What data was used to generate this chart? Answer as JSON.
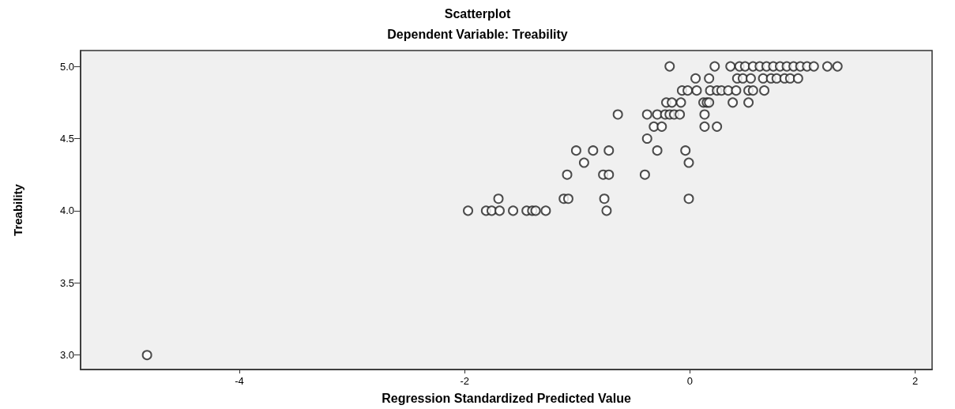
{
  "chart_data": {
    "type": "scatter",
    "title": "Scatterplot",
    "subtitle": "Dependent Variable: Treability",
    "xlabel": "Regression Standardized Predicted Value",
    "ylabel": "Treability",
    "series": [
      {
        "color": "#222222",
        "x": [
          -4.82,
          -1.97,
          -1.81,
          -1.76,
          -1.69,
          -1.57,
          -1.45,
          -1.4,
          -1.37,
          -1.28,
          -0.74,
          -1.7,
          -1.12,
          -1.08,
          -0.76,
          -0.01,
          -1.09,
          -0.77,
          -0.72,
          -0.4,
          -0.94,
          -0.01,
          -1.01,
          -0.86,
          -0.72,
          -0.29,
          -0.04,
          -0.38,
          -0.32,
          -0.25,
          0.13,
          0.24,
          -0.64,
          -0.38,
          -0.29,
          -0.22,
          -0.18,
          -0.14,
          -0.09,
          0.13,
          -0.21,
          -0.16,
          -0.08,
          0.12,
          0.15,
          0.17,
          0.38,
          0.52,
          -0.07,
          -0.02,
          0.06,
          0.18,
          0.24,
          0.28,
          0.34,
          0.41,
          0.52,
          0.56,
          0.66,
          0.05,
          0.17,
          0.42,
          0.47,
          0.54,
          0.65,
          0.72,
          0.77,
          0.84,
          0.89,
          0.96,
          -0.18,
          0.22,
          0.36,
          0.44,
          0.49,
          0.56,
          0.62,
          0.68,
          0.74,
          0.8,
          0.86,
          0.92,
          0.98,
          1.04,
          1.1,
          1.22,
          1.31
        ],
        "values": [
          3.0,
          4.0,
          4.0,
          4.0,
          4.0,
          4.0,
          4.0,
          4.0,
          4.0,
          4.0,
          4.0,
          4.083,
          4.083,
          4.083,
          4.083,
          4.083,
          4.25,
          4.25,
          4.25,
          4.25,
          4.333,
          4.333,
          4.417,
          4.417,
          4.417,
          4.417,
          4.417,
          4.5,
          4.583,
          4.583,
          4.583,
          4.583,
          4.667,
          4.667,
          4.667,
          4.667,
          4.667,
          4.667,
          4.667,
          4.667,
          4.75,
          4.75,
          4.75,
          4.75,
          4.75,
          4.75,
          4.75,
          4.75,
          4.833,
          4.833,
          4.833,
          4.833,
          4.833,
          4.833,
          4.833,
          4.833,
          4.833,
          4.833,
          4.833,
          4.917,
          4.917,
          4.917,
          4.917,
          4.917,
          4.917,
          4.917,
          4.917,
          4.917,
          4.917,
          4.917,
          5.0,
          5.0,
          5.0,
          5.0,
          5.0,
          5.0,
          5.0,
          5.0,
          5.0,
          5.0,
          5.0,
          5.0,
          5.0,
          5.0,
          5.0,
          5.0,
          5.0
        ]
      }
    ],
    "xlim": [
      -5.41,
      2.15
    ],
    "xticks": [
      -4,
      -2,
      0,
      2
    ],
    "ylim": [
      2.9,
      5.11
    ],
    "yticks": [
      {
        "value": 3,
        "label": "3.0"
      },
      {
        "value": 3.5,
        "label": "3.5"
      },
      {
        "value": 4,
        "label": "4.0"
      },
      {
        "value": 4.5,
        "label": "4.5"
      },
      {
        "value": 5,
        "label": "5.0"
      }
    ],
    "marker": "circle",
    "grid": false
  }
}
